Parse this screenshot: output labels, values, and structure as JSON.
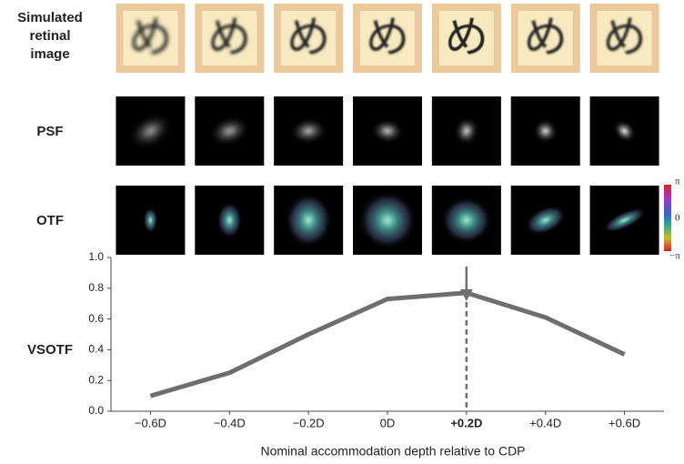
{
  "panels": {
    "row_labels": [
      "Simulated retinal image",
      "PSF",
      "OTF"
    ],
    "glyph": "め",
    "colorbar_labels": [
      "π",
      "0",
      "−π"
    ]
  },
  "chart_data": {
    "type": "line",
    "ylabel": "VSOTF",
    "xlabel": "Nominal accommodation depth relative to CDP",
    "x": [
      {
        "value": -0.6,
        "label": "−0.6D"
      },
      {
        "value": -0.4,
        "label": "−0.4D"
      },
      {
        "value": -0.2,
        "label": "−0.2D"
      },
      {
        "value": 0,
        "label": "0D"
      },
      {
        "value": 0.2,
        "label": "+0.2D"
      },
      {
        "value": 0.4,
        "label": "+0.4D"
      },
      {
        "value": 0.6,
        "label": "+0.6D"
      }
    ],
    "xlim": [
      -0.7,
      0.7
    ],
    "series": [
      {
        "name": "VSOTF",
        "color": "#6e6e70",
        "values": [
          0.1,
          0.25,
          0.5,
          0.73,
          0.77,
          0.61,
          0.37
        ]
      }
    ],
    "ylim": [
      0,
      1
    ],
    "yticks": [
      {
        "value": 0,
        "label": "0.0"
      },
      0.2,
      0.4,
      0.6,
      0.8,
      {
        "value": 1,
        "label": "1.0"
      }
    ],
    "highlight_index": 4
  }
}
